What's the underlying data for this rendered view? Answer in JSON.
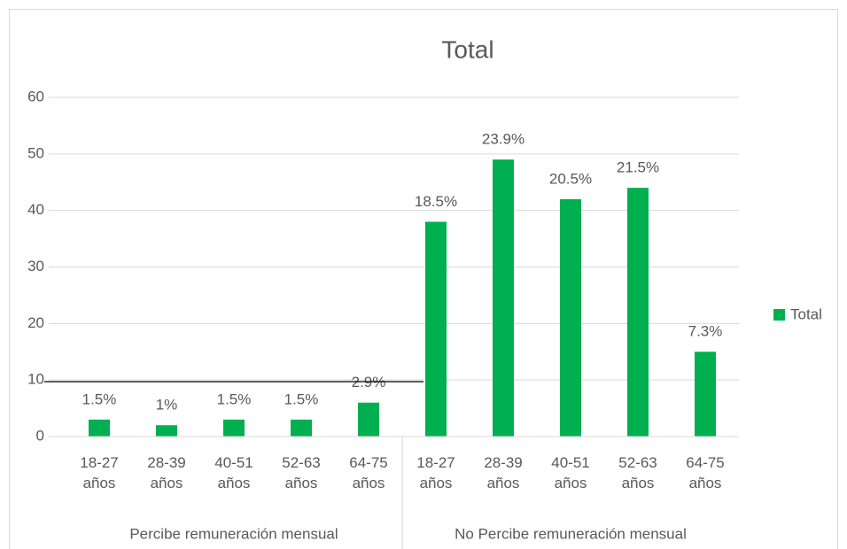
{
  "chart_data": {
    "type": "bar",
    "title": "Total",
    "categories": [
      "18-27 años",
      "28-39 años",
      "40-51 años",
      "52-63 años",
      "64-75 años",
      "18-27 años",
      "28-39 años",
      "40-51 años",
      "52-63 años",
      "64-75 años"
    ],
    "groups": [
      "Percibe remuneración mensual",
      "No Percibe remuneración mensual"
    ],
    "series": [
      {
        "name": "Total",
        "color": "#00b050",
        "values": [
          3,
          2,
          3,
          3,
          6,
          38,
          49,
          42,
          44,
          15
        ],
        "value_labels": [
          "1.5%",
          "1%",
          "1.5%",
          "1.5%",
          "2.9%",
          "18.5%",
          "23.9%",
          "20.5%",
          "21.5%",
          "7.3%"
        ]
      }
    ],
    "ylim": [
      0,
      60
    ],
    "yticks": [
      0,
      10,
      20,
      30,
      40,
      50,
      60
    ],
    "grid": true,
    "legend": "right"
  }
}
